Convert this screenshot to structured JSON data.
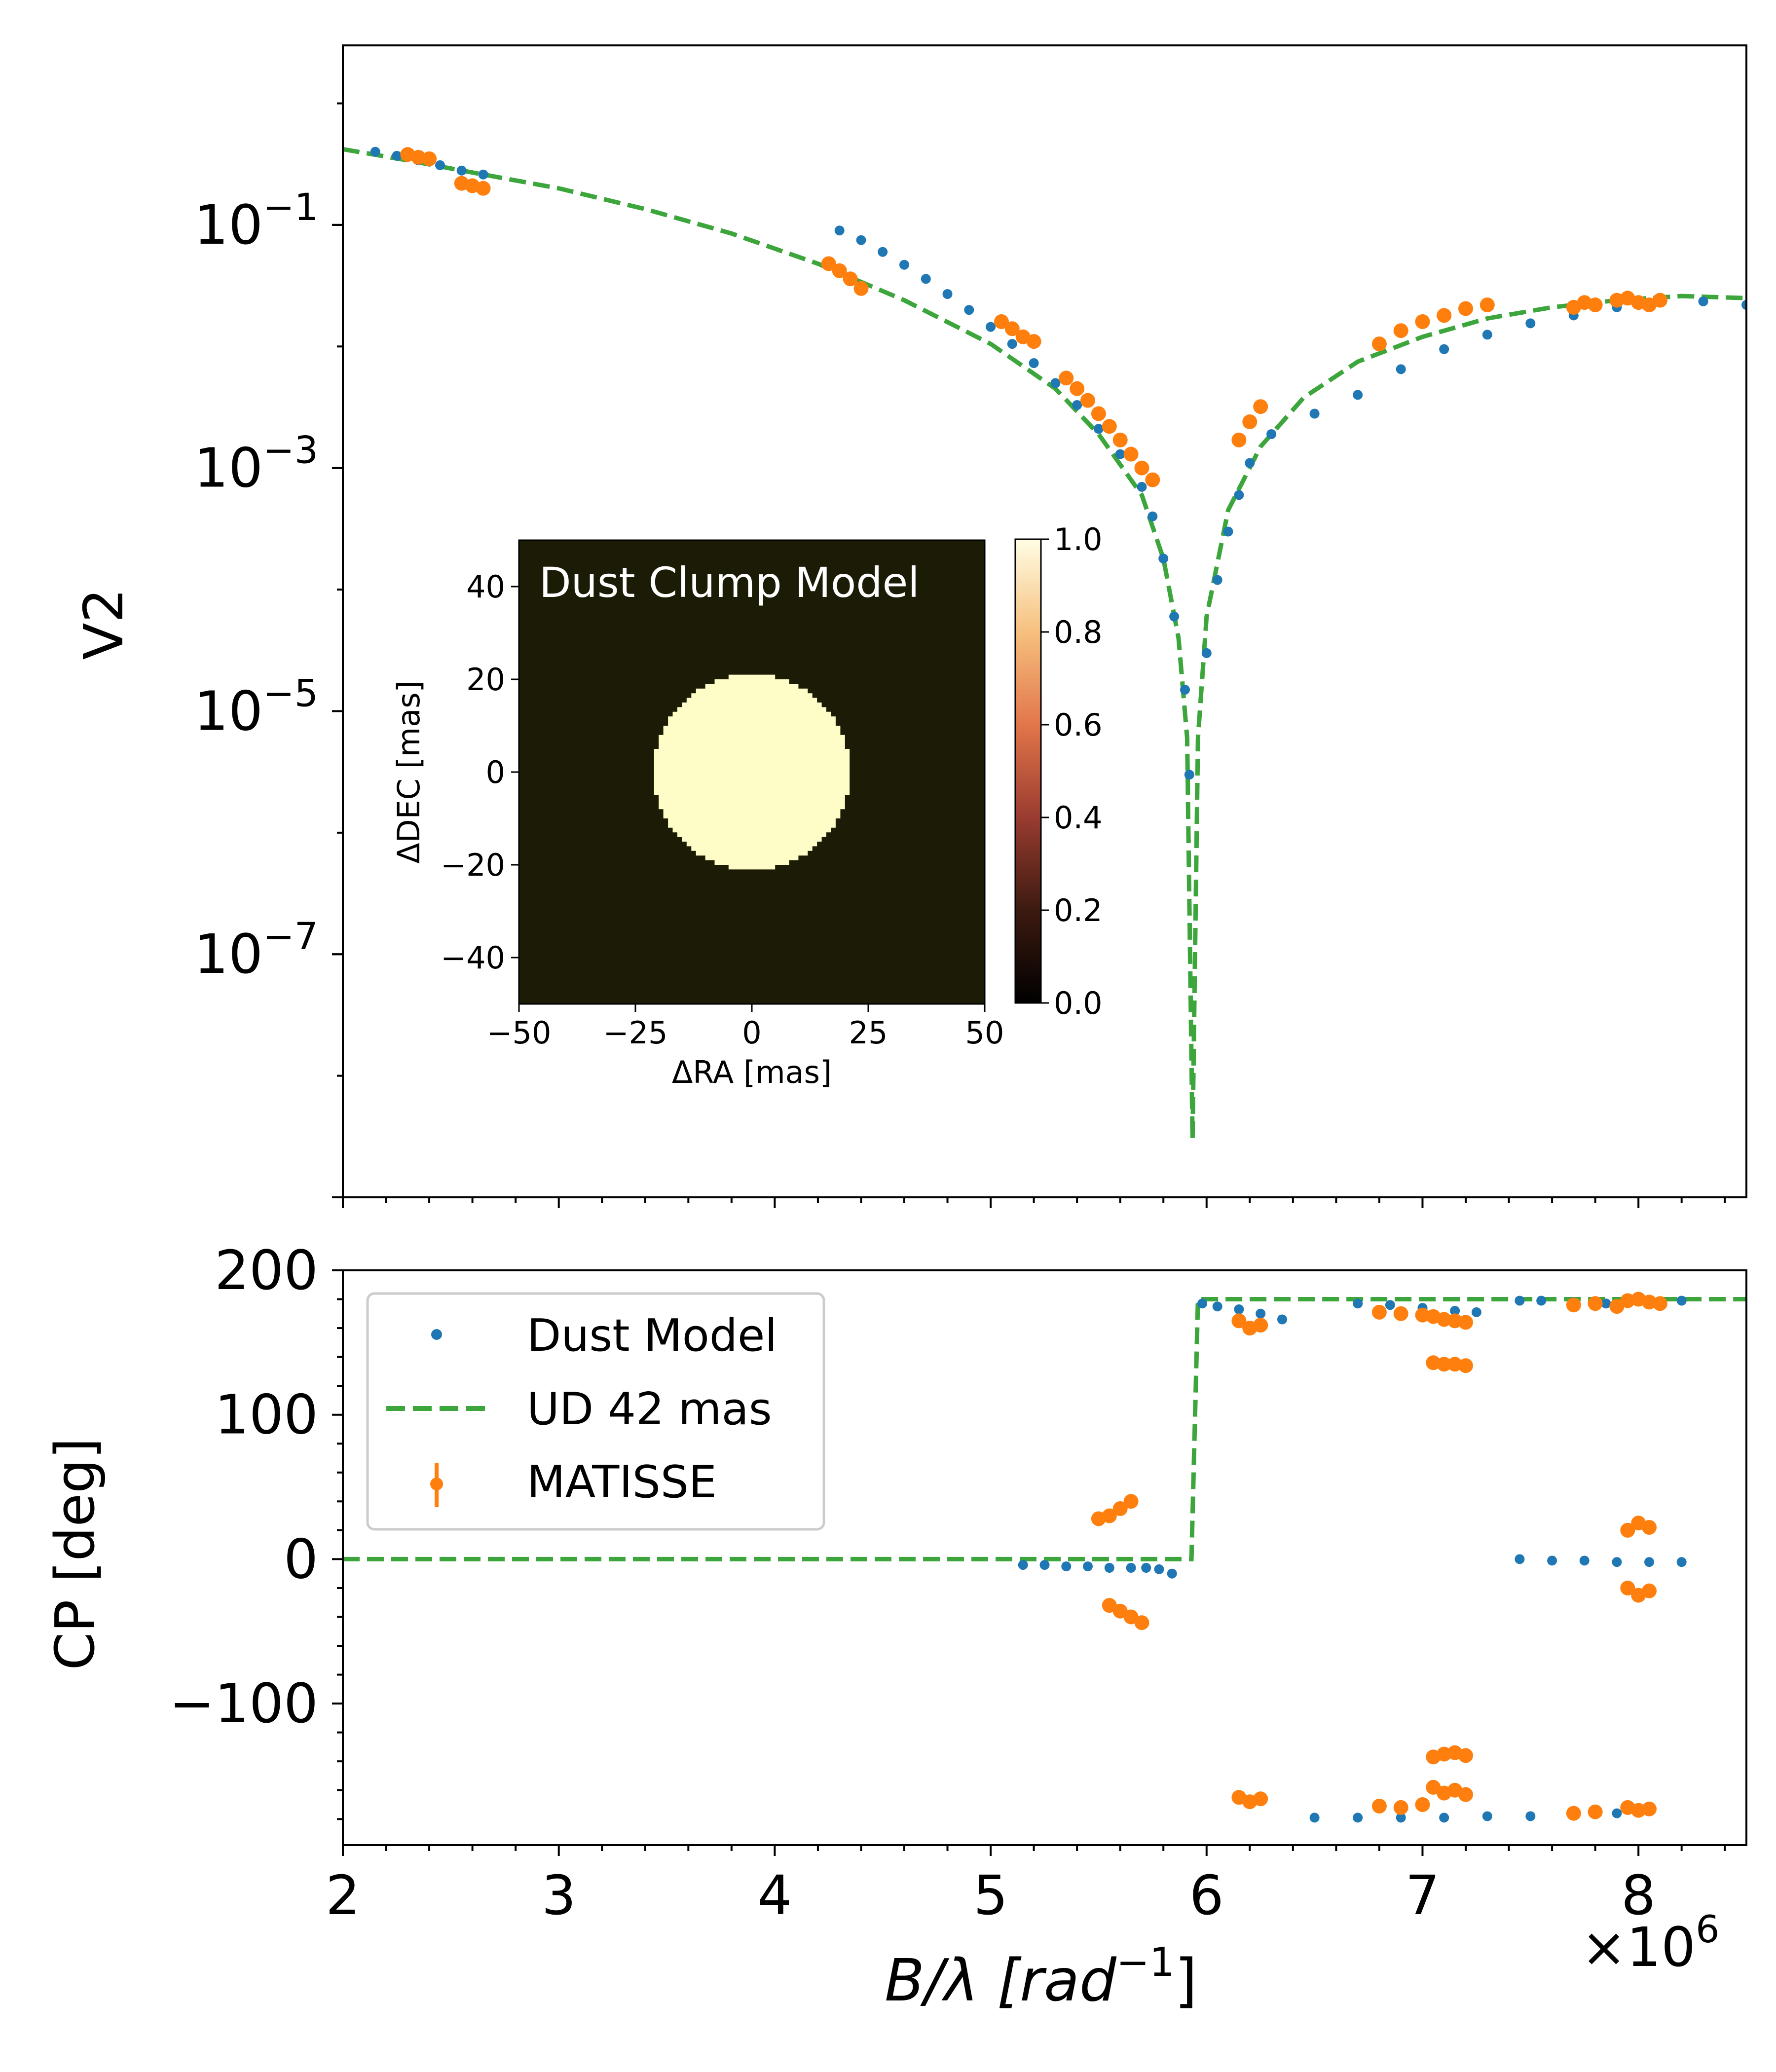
{
  "chart_data": [
    {
      "type": "scatter",
      "panel": "top",
      "ylabel": "V2",
      "yscale": "log",
      "ylim": [
        1e-09,
        3.0
      ],
      "yticks": [
        {
          "value": 0.1,
          "base": "10",
          "exp": "−1"
        },
        {
          "value": 0.001,
          "base": "10",
          "exp": "−3"
        },
        {
          "value": 1e-05,
          "base": "10",
          "exp": "−5"
        },
        {
          "value": 1e-07,
          "base": "10",
          "exp": "−7"
        }
      ],
      "xlim": [
        2,
        8.5
      ],
      "series": [
        {
          "name": "UD 42 mas",
          "style": "dashed-line",
          "color": "#3ca63c",
          "x": [
            2.0,
            2.3,
            2.6,
            3.0,
            3.4,
            3.8,
            4.2,
            4.6,
            5.0,
            5.3,
            5.5,
            5.7,
            5.8,
            5.87,
            5.91,
            5.935,
            5.96,
            6.0,
            6.1,
            6.25,
            6.45,
            6.7,
            7.0,
            7.3,
            7.6,
            7.9,
            8.2,
            8.5
          ],
          "y": [
            0.42,
            0.34,
            0.27,
            0.2,
            0.135,
            0.085,
            0.048,
            0.024,
            0.0105,
            0.0045,
            0.0019,
            0.0006,
            0.00018,
            4e-05,
            6e-06,
            3e-09,
            6e-06,
            6e-05,
            0.00045,
            0.0015,
            0.0038,
            0.0075,
            0.012,
            0.017,
            0.021,
            0.024,
            0.026,
            0.025
          ]
        },
        {
          "name": "Dust Model",
          "style": "points",
          "color": "#1f77b4",
          "x": [
            2.15,
            2.25,
            2.35,
            2.45,
            2.55,
            2.65,
            4.3,
            4.4,
            4.5,
            4.6,
            4.7,
            4.8,
            4.9,
            5.0,
            5.1,
            5.2,
            5.3,
            5.4,
            5.5,
            5.6,
            5.7,
            5.75,
            5.8,
            5.85,
            5.9,
            5.92,
            6.0,
            6.05,
            6.1,
            6.15,
            6.2,
            6.3,
            6.5,
            6.7,
            6.9,
            7.1,
            7.3,
            7.5,
            7.7,
            7.9,
            8.1,
            8.3,
            8.5
          ],
          "y": [
            0.4,
            0.37,
            0.34,
            0.31,
            0.28,
            0.26,
            0.09,
            0.075,
            0.06,
            0.047,
            0.036,
            0.027,
            0.02,
            0.0145,
            0.0105,
            0.0073,
            0.005,
            0.0033,
            0.0021,
            0.0013,
            0.0007,
            0.0004,
            0.00018,
            6e-05,
            1.5e-05,
            3e-06,
            3e-05,
            0.00012,
            0.0003,
            0.0006,
            0.0011,
            0.0019,
            0.0028,
            0.004,
            0.0065,
            0.0095,
            0.0125,
            0.0155,
            0.018,
            0.021,
            0.023,
            0.0235,
            0.022
          ]
        },
        {
          "name": "MATISSE",
          "style": "points",
          "color": "#ff7f0e",
          "x": [
            2.3,
            2.35,
            2.4,
            2.55,
            2.6,
            2.65,
            4.25,
            4.3,
            4.35,
            4.4,
            5.05,
            5.1,
            5.15,
            5.2,
            5.35,
            5.4,
            5.45,
            5.5,
            5.55,
            5.6,
            5.65,
            5.7,
            5.75,
            6.15,
            6.2,
            6.25,
            6.8,
            6.9,
            7.0,
            7.1,
            7.2,
            7.3,
            7.7,
            7.75,
            7.8,
            7.9,
            7.95,
            8.0,
            8.05,
            8.1
          ],
          "y": [
            0.38,
            0.36,
            0.35,
            0.22,
            0.21,
            0.2,
            0.048,
            0.042,
            0.036,
            0.03,
            0.016,
            0.014,
            0.012,
            0.011,
            0.0055,
            0.0045,
            0.0036,
            0.0028,
            0.0022,
            0.0017,
            0.0013,
            0.001,
            0.0008,
            0.0017,
            0.0024,
            0.0032,
            0.0105,
            0.0135,
            0.016,
            0.018,
            0.0205,
            0.022,
            0.021,
            0.023,
            0.022,
            0.024,
            0.025,
            0.023,
            0.022,
            0.024
          ]
        }
      ]
    },
    {
      "type": "scatter",
      "panel": "bottom",
      "ylabel": "CP [deg]",
      "xlabel_main": "B/λ [rad",
      "xlabel_exp": "−1",
      "xlabel_close": "]",
      "xscale_note": "×10",
      "xscale_exp": "6",
      "xlim": [
        2,
        8.5
      ],
      "ylim": [
        -198,
        200
      ],
      "xticks": [
        "2",
        "3",
        "4",
        "5",
        "6",
        "7",
        "8"
      ],
      "yticks": [
        "200",
        "100",
        "0",
        "−100"
      ],
      "ytick_values": [
        200,
        100,
        0,
        -100
      ],
      "legend": [
        "Dust Model",
        "UD 42 mas",
        "MATISSE"
      ],
      "series": [
        {
          "name": "UD 42 mas",
          "style": "dashed-line",
          "color": "#3ca63c",
          "x": [
            2.0,
            5.93,
            5.96,
            8.5
          ],
          "y": [
            0,
            0,
            180,
            180
          ]
        },
        {
          "name": "Dust Model",
          "style": "points",
          "color": "#1f77b4",
          "x": [
            5.15,
            5.25,
            5.35,
            5.45,
            5.55,
            5.65,
            5.72,
            5.78,
            5.84,
            5.98,
            6.05,
            6.15,
            6.25,
            6.35,
            6.7,
            6.85,
            7.0,
            7.15,
            7.25,
            7.45,
            7.55,
            7.7,
            7.85,
            7.95,
            8.05,
            8.2,
            7.45,
            7.6,
            7.75,
            7.9,
            8.05,
            8.2,
            6.5,
            6.7,
            6.9,
            7.1,
            7.3,
            7.5,
            7.7,
            7.9
          ],
          "y": [
            -4,
            -4,
            -5,
            -5,
            -6,
            -6,
            -6,
            -7,
            -10,
            177,
            175,
            173,
            170,
            166,
            177,
            176,
            174,
            172,
            171,
            179,
            179,
            178,
            177,
            178,
            179,
            179,
            0,
            -1,
            -1,
            -2,
            -2,
            -2,
            -179,
            -179,
            -179,
            -179,
            -178,
            -178,
            -177,
            -176
          ]
        },
        {
          "name": "MATISSE",
          "style": "points",
          "color": "#ff7f0e",
          "x": [
            5.5,
            5.55,
            5.6,
            5.65,
            5.55,
            5.6,
            5.65,
            5.7,
            6.15,
            6.2,
            6.25,
            6.15,
            6.2,
            6.25,
            6.8,
            6.9,
            7.0,
            7.05,
            7.1,
            7.15,
            7.2,
            7.05,
            7.1,
            7.15,
            7.2,
            7.05,
            7.1,
            7.15,
            7.2,
            7.05,
            7.1,
            7.15,
            7.2,
            6.8,
            6.9,
            7.0,
            7.7,
            7.8,
            7.9,
            7.95,
            8.0,
            8.05,
            8.1,
            7.95,
            8.0,
            8.05,
            7.95,
            8.0,
            8.05,
            7.95,
            8.0,
            8.05,
            7.7,
            7.8
          ],
          "y": [
            28,
            30,
            35,
            40,
            -32,
            -36,
            -40,
            -44,
            165,
            160,
            162,
            -165,
            -168,
            -166,
            171,
            170,
            169,
            168,
            166,
            165,
            164,
            136,
            135,
            135,
            134,
            -137,
            -135,
            -134,
            -136,
            -158,
            -162,
            -160,
            -163,
            -171,
            -172,
            -170,
            176,
            177,
            175,
            179,
            180,
            178,
            177,
            20,
            25,
            22,
            -20,
            -25,
            -22,
            -172,
            -174,
            -173,
            -176,
            -175
          ]
        }
      ]
    }
  ],
  "inset": {
    "title": "Dust Clump Model",
    "xlabel": "ΔRA [mas]",
    "ylabel": "ΔDEC [mas]",
    "xticks": [
      "−50",
      "−25",
      "0",
      "25",
      "50"
    ],
    "xtick_values": [
      -50,
      -25,
      0,
      25,
      50
    ],
    "yticks": [
      "40",
      "20",
      "0",
      "−20",
      "−40"
    ],
    "ytick_values": [
      40,
      20,
      0,
      -20,
      -40
    ],
    "disk_radius_mas": 21,
    "disk_color": "#fefdc8",
    "background_color": "#1c1c06",
    "colorbar_ticks": [
      "1.0",
      "0.8",
      "0.6",
      "0.4",
      "0.2",
      "0.0"
    ],
    "colorbar_values": [
      1.0,
      0.8,
      0.6,
      0.4,
      0.2,
      0.0
    ]
  },
  "colors": {
    "dust_model": "#1f77b4",
    "ud": "#3ca63c",
    "matisse": "#ff7f0e"
  }
}
